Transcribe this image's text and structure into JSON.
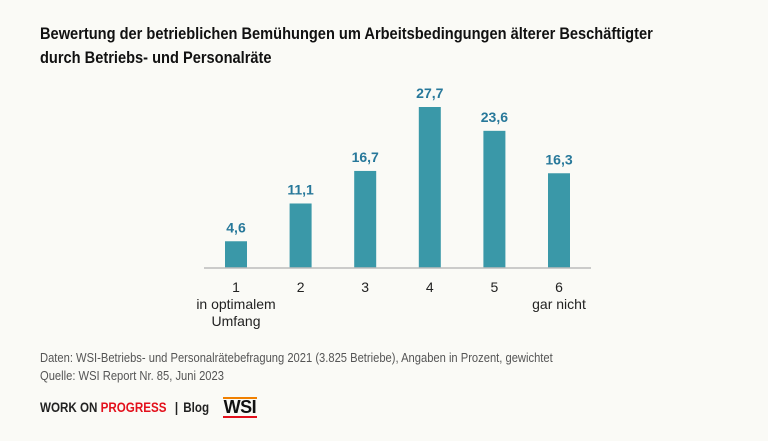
{
  "chart_data": {
    "type": "bar",
    "title": "Bewertung der betrieblichen Bemühungen um Arbeitsbedingungen älterer Beschäftigter durch Betriebs- und Personalräte",
    "title_lines": [
      "Bewertung der betrieblichen Bemühungen um Arbeitsbedingungen älterer Beschäftigter",
      "durch Betriebs- und Personalräte"
    ],
    "categories": [
      "1",
      "2",
      "3",
      "4",
      "5",
      "6"
    ],
    "category_sublabels": [
      [
        "in optimalem",
        "Umfang"
      ],
      [],
      [],
      [],
      [],
      [
        "gar nicht"
      ]
    ],
    "values": [
      4.6,
      11.1,
      16.7,
      27.7,
      23.6,
      16.3
    ],
    "value_labels": [
      "4,6",
      "11,1",
      "16,7",
      "27,7",
      "23,6",
      "16,3"
    ],
    "ylim": [
      0,
      30
    ],
    "grid": false,
    "colors": {
      "bar": "#3a98a8",
      "label": "#27789a"
    }
  },
  "notes": {
    "data": "Daten: WSI-Betriebs- und Personalrätebefragung 2021 (3.825 Betriebe), Angaben in Prozent, gewichtet",
    "source": "Quelle: WSI Report Nr. 85, Juni 2023"
  },
  "footer": {
    "part1": "WORK ON ",
    "part2": "PROGRESS",
    "sep": "|",
    "blog": "Blog",
    "logo": "WSI"
  }
}
